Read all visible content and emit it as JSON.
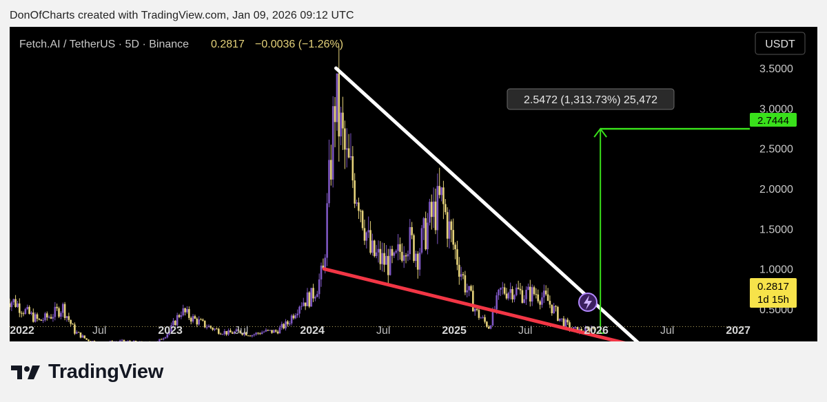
{
  "header": {
    "caption": "DonOfCharts created with TradingView.com, Jan 09, 2026 09:12 UTC"
  },
  "symbol": {
    "name": "Fetch.AI / TetherUS · 5D · Binance",
    "price": "0.2817",
    "change": "−0.0036 (−1.26%)"
  },
  "currency_button": "USDT",
  "measure_label": "2.5472 (1,313.73%) 25,472",
  "target_price_label": "2.7444",
  "last_price_label": "0.2817",
  "countdown_label": "1d 15h",
  "footer": {
    "brand": "TradingView"
  },
  "colors": {
    "background": "#000000",
    "candles_up": "#7e57c2",
    "candles_down": "#e5d27a",
    "resistance": "#ffffff",
    "support": "#f23645",
    "target": "#39e01b",
    "last_price_badge": "#f7e34a"
  },
  "chart_data": {
    "type": "line",
    "title": "",
    "xlabel": "",
    "ylabel": "",
    "x_ticks": [
      "2022",
      "Jul",
      "2023",
      "Jul",
      "2024",
      "Jul",
      "2025",
      "Jul",
      "2026",
      "Jul",
      "2027"
    ],
    "y_ticks": [
      "3.5000",
      "3.0000",
      "2.5000",
      "2.0000",
      "1.5000",
      "1.0000",
      "0.5000"
    ],
    "ylim": [
      0,
      3.65
    ],
    "xlim": [
      "2021-11",
      "2027-06"
    ],
    "series": [
      {
        "values": [
          [
            "2021-11",
            0.65
          ],
          [
            "2021-12",
            0.58
          ],
          [
            "2022-01",
            0.45
          ],
          [
            "2022-02",
            0.35
          ],
          [
            "2022-03",
            0.42
          ],
          [
            "2022-04",
            0.52
          ],
          [
            "2022-05",
            0.22
          ],
          [
            "2022-06",
            0.12
          ],
          [
            "2022-07",
            0.08
          ],
          [
            "2022-08",
            0.09
          ],
          [
            "2022-09",
            0.1
          ],
          [
            "2022-10",
            0.09
          ],
          [
            "2022-11",
            0.08
          ],
          [
            "2022-12",
            0.09
          ],
          [
            "2023-01",
            0.22
          ],
          [
            "2023-02",
            0.48
          ],
          [
            "2023-03",
            0.38
          ],
          [
            "2023-04",
            0.3
          ],
          [
            "2023-05",
            0.24
          ],
          [
            "2023-06",
            0.2
          ],
          [
            "2023-07",
            0.22
          ],
          [
            "2023-08",
            0.18
          ],
          [
            "2023-09",
            0.22
          ],
          [
            "2023-10",
            0.22
          ],
          [
            "2023-11",
            0.32
          ],
          [
            "2023-12",
            0.58
          ],
          [
            "2024-01",
            0.65
          ],
          [
            "2024-02",
            0.95
          ],
          [
            "2024-03",
            3.1
          ],
          [
            "2024-04",
            2.3
          ],
          [
            "2024-05",
            1.95
          ],
          [
            "2024-06",
            1.2
          ],
          [
            "2024-07",
            1.1
          ],
          [
            "2024-08",
            1.05
          ],
          [
            "2024-09",
            1.4
          ],
          [
            "2024-10",
            1.2
          ],
          [
            "2024-11",
            1.6
          ],
          [
            "2024-12",
            1.85
          ],
          [
            "2025-01",
            1.3
          ],
          [
            "2025-02",
            0.8
          ],
          [
            "2025-03",
            0.45
          ],
          [
            "2025-04",
            0.28
          ],
          [
            "2025-05",
            0.72
          ],
          [
            "2025-06",
            0.75
          ],
          [
            "2025-07",
            0.68
          ],
          [
            "2025-08",
            0.7
          ],
          [
            "2025-09",
            0.6
          ],
          [
            "2025-10",
            0.38
          ],
          [
            "2025-11",
            0.25
          ],
          [
            "2025-12",
            0.22
          ],
          [
            "2026-01",
            0.2817
          ]
        ]
      }
    ],
    "trendlines": {
      "resistance": [
        [
          "2024-03",
          3.5
        ],
        [
          "2026-05",
          0.02
        ]
      ],
      "support": [
        [
          "2024-02",
          1.0
        ],
        [
          "2026-05",
          0.02
        ]
      ]
    },
    "target_projection": {
      "from": 0.2,
      "to": 2.7444,
      "x": "2026-01"
    },
    "last_price": 0.2817
  }
}
